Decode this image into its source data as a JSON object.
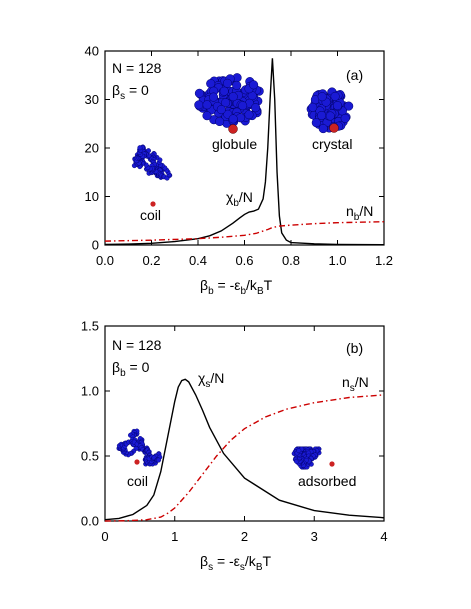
{
  "chart_data": [
    {
      "type": "line",
      "panel_label": "(a)",
      "params": [
        "N = 128",
        "β_s = 0"
      ],
      "xlabel": {
        "main": "β",
        "sub": "b",
        "mid": " = -ε",
        "sub2": "b",
        "tail": "/k",
        "sub3": "B",
        "end": "T"
      },
      "xlim": [
        0.0,
        1.2
      ],
      "ylim": [
        0,
        40
      ],
      "xticks": [
        "0.0",
        "0.2",
        "0.4",
        "0.6",
        "0.8",
        "1.0",
        "1.2"
      ],
      "yticks": [
        "0",
        "10",
        "20",
        "30",
        "40"
      ],
      "annotations": [
        "globule",
        "crystal",
        "coil"
      ],
      "series": [
        {
          "label_main": "χ",
          "label_sub": "b",
          "label_tail": "/N",
          "color": "#000000",
          "dash": "",
          "x": [
            0.0,
            0.1,
            0.2,
            0.3,
            0.4,
            0.45,
            0.5,
            0.55,
            0.58,
            0.6,
            0.62,
            0.64,
            0.66,
            0.68,
            0.69,
            0.7,
            0.71,
            0.72,
            0.73,
            0.74,
            0.75,
            0.76,
            0.78,
            0.8,
            0.9,
            1.0,
            1.2
          ],
          "y": [
            0.1,
            0.2,
            0.35,
            0.7,
            1.3,
            1.9,
            2.9,
            4.5,
            5.6,
            6.3,
            6.8,
            7.0,
            7.4,
            9.5,
            13.0,
            20.0,
            30.0,
            38.5,
            30.0,
            15.0,
            6.0,
            2.5,
            1.0,
            0.5,
            0.25,
            0.12,
            0.05
          ]
        },
        {
          "label_main": "n",
          "label_sub": "b",
          "label_tail": "/N",
          "color": "#cc0000",
          "dash": "6,3,1.5,3",
          "x": [
            0.0,
            0.2,
            0.4,
            0.5,
            0.6,
            0.65,
            0.7,
            0.72,
            0.75,
            0.8,
            0.9,
            1.0,
            1.2
          ],
          "y": [
            0.8,
            1.0,
            1.3,
            1.6,
            2.0,
            2.4,
            3.2,
            3.6,
            3.9,
            4.1,
            4.4,
            4.6,
            4.8
          ]
        }
      ]
    },
    {
      "type": "line",
      "panel_label": "(b)",
      "params": [
        "N = 128",
        "β_b = 0"
      ],
      "xlabel": {
        "main": "β",
        "sub": "s",
        "mid": " = -ε",
        "sub2": "s",
        "tail": "/k",
        "sub3": "B",
        "end": "T"
      },
      "xlim": [
        0,
        4
      ],
      "ylim": [
        0.0,
        1.5
      ],
      "xticks": [
        "0",
        "1",
        "2",
        "3",
        "4"
      ],
      "yticks": [
        "0.0",
        "0.5",
        "1.0",
        "1.5"
      ],
      "annotations": [
        "coil",
        "adsorbed"
      ],
      "series": [
        {
          "label_main": "χ",
          "label_sub": "s",
          "label_tail": "/N",
          "color": "#000000",
          "dash": "",
          "x": [
            0.0,
            0.2,
            0.4,
            0.6,
            0.7,
            0.8,
            0.9,
            1.0,
            1.05,
            1.1,
            1.15,
            1.2,
            1.3,
            1.4,
            1.5,
            1.7,
            2.0,
            2.5,
            3.0,
            3.5,
            4.0
          ],
          "y": [
            0.01,
            0.02,
            0.05,
            0.12,
            0.2,
            0.38,
            0.65,
            0.92,
            1.03,
            1.08,
            1.09,
            1.07,
            0.97,
            0.85,
            0.72,
            0.52,
            0.33,
            0.16,
            0.08,
            0.045,
            0.025
          ]
        },
        {
          "label_main": "n",
          "label_sub": "s",
          "label_tail": "/N",
          "color": "#cc0000",
          "dash": "6,3,1.5,3",
          "x": [
            0.0,
            0.3,
            0.6,
            0.8,
            0.9,
            1.0,
            1.2,
            1.4,
            1.6,
            1.8,
            2.0,
            2.3,
            2.6,
            3.0,
            3.5,
            4.0
          ],
          "y": [
            0.0,
            0.002,
            0.01,
            0.03,
            0.06,
            0.1,
            0.22,
            0.36,
            0.5,
            0.62,
            0.71,
            0.8,
            0.86,
            0.91,
            0.95,
            0.97
          ]
        }
      ]
    }
  ],
  "colors": {
    "polymer": "#1a1ad4",
    "monomer_end": "#cc2222"
  }
}
